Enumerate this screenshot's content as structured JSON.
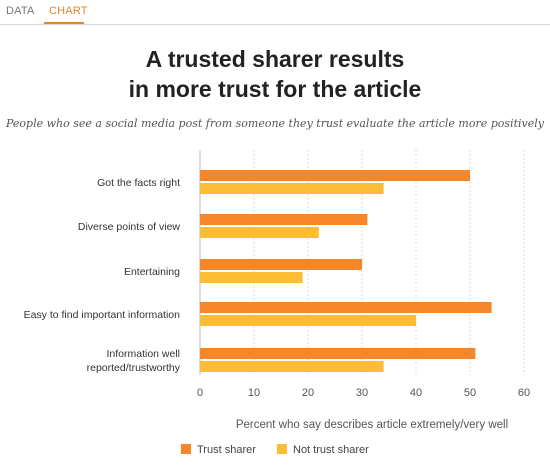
{
  "tabs": [
    {
      "label": "DATA"
    },
    {
      "label": "CHART"
    }
  ],
  "chart_data": {
    "type": "bar",
    "orientation": "horizontal",
    "title_line1": "A trusted sharer results",
    "title_line2": "in more trust for the article",
    "subtitle": "People who see a social media post from someone they trust evaluate the article more positively",
    "xlabel": "Percent who say describes article extremely/very well",
    "xlim": [
      0,
      60
    ],
    "xticks": [
      0,
      10,
      20,
      30,
      40,
      50,
      60
    ],
    "categories": [
      {
        "lines": [
          "Got the facts right"
        ]
      },
      {
        "lines": [
          "Diverse points of view"
        ]
      },
      {
        "lines": [
          "Entertaining"
        ]
      },
      {
        "lines": [
          "Easy to find important information"
        ]
      },
      {
        "lines": [
          "Information well",
          "reported/trustworthy"
        ]
      }
    ],
    "series": [
      {
        "name": "Trust sharer",
        "color": "#f5862a",
        "values": [
          50,
          31,
          30,
          54,
          51
        ]
      },
      {
        "name": "Not trust sharer",
        "color": "#fcbc35",
        "values": [
          34,
          22,
          19,
          40,
          34
        ]
      }
    ],
    "grid": "vertical",
    "legend_position": "bottom"
  }
}
